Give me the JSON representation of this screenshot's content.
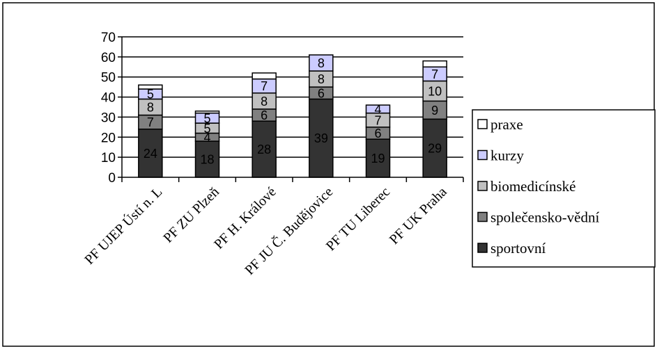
{
  "chart_data": {
    "type": "bar",
    "stacked": true,
    "title": "",
    "xlabel": "",
    "ylabel": "",
    "ylim": [
      0,
      70
    ],
    "yticks": [
      0,
      10,
      20,
      30,
      40,
      50,
      60,
      70
    ],
    "grid": true,
    "legend_position": "right",
    "categories": [
      "PF UJEP Ústí n. L",
      "PF ZU Plzeň",
      "PF H. Králové",
      "PF JU Č. Budějovice",
      "PF TU Liberec",
      "PF UK Praha"
    ],
    "series": [
      {
        "name": "sportovní",
        "color": "#333333",
        "values": [
          24,
          18,
          28,
          39,
          19,
          29
        ],
        "labels": [
          "24",
          "18",
          "28",
          "39",
          "19",
          "29"
        ]
      },
      {
        "name": "společensko-vědní",
        "color": "#808080",
        "values": [
          7,
          4,
          6,
          6,
          6,
          9
        ],
        "labels": [
          "7",
          "4",
          "6",
          "6",
          "6",
          "9"
        ]
      },
      {
        "name": "biomedicínské",
        "color": "#c0c0c0",
        "values": [
          8,
          5,
          8,
          8,
          7,
          10
        ],
        "labels": [
          "8",
          "5",
          "8",
          "8",
          "7",
          "10"
        ]
      },
      {
        "name": "kurzy",
        "color": "#ccccff",
        "values": [
          5,
          5,
          7,
          8,
          4,
          7
        ],
        "labels": [
          "5",
          "5",
          "7",
          "8",
          "4",
          "7"
        ]
      },
      {
        "name": "praxe",
        "color": "#ffffff",
        "values": [
          2,
          1,
          3,
          0,
          0,
          3
        ],
        "labels": [
          "",
          "",
          "",
          "",
          "",
          ""
        ]
      }
    ],
    "legend_order": [
      "praxe",
      "kurzy",
      "biomedicínské",
      "společensko-vědní",
      "sportovní"
    ]
  }
}
